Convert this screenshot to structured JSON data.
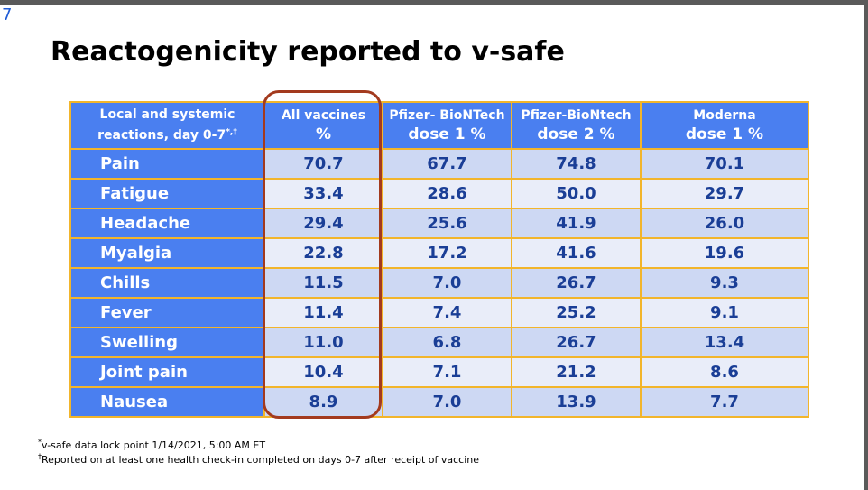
{
  "slide": {
    "number": "7"
  },
  "title": "Reactogenicity reported to v-safe",
  "table": {
    "headers": [
      {
        "top": "Local and systemic",
        "bottom": "reactions, day 0-7",
        "mark": "*,†"
      },
      {
        "top": "All vaccines",
        "bottom": "%"
      },
      {
        "top": "Pfizer- BioNTech",
        "bottom": "dose 1 %"
      },
      {
        "top": "Pfizer-BioNtech",
        "bottom": "dose 2 %"
      },
      {
        "top": "Moderna",
        "bottom": "dose 1 %"
      }
    ],
    "rows": [
      {
        "label": "Pain",
        "values": [
          "70.7",
          "67.7",
          "74.8",
          "70.1"
        ]
      },
      {
        "label": "Fatigue",
        "values": [
          "33.4",
          "28.6",
          "50.0",
          "29.7"
        ]
      },
      {
        "label": "Headache",
        "values": [
          "29.4",
          "25.6",
          "41.9",
          "26.0"
        ]
      },
      {
        "label": "Myalgia",
        "values": [
          "22.8",
          "17.2",
          "41.6",
          "19.6"
        ]
      },
      {
        "label": "Chills",
        "values": [
          "11.5",
          "7.0",
          "26.7",
          "9.3"
        ]
      },
      {
        "label": "Fever",
        "values": [
          "11.4",
          "7.4",
          "25.2",
          "9.1"
        ]
      },
      {
        "label": "Swelling",
        "values": [
          "11.0",
          "6.8",
          "26.7",
          "13.4"
        ]
      },
      {
        "label": "Joint pain",
        "values": [
          "10.4",
          "7.1",
          "21.2",
          "8.6"
        ]
      },
      {
        "label": "Nausea",
        "values": [
          "8.9",
          "7.0",
          "13.9",
          "7.7"
        ]
      }
    ]
  },
  "footnotes": [
    {
      "mark": "*",
      "text": "v-safe data lock point 1/14/2021, 5:00 AM ET"
    },
    {
      "mark": "†",
      "text": "Reported on at least one health check-in completed on days 0-7 after receipt of vaccine"
    }
  ],
  "colors": {
    "header_bg": "#4a7ff0",
    "cell_dark": "#cdd8f3",
    "cell_light": "#e9edf9",
    "value_text": "#1a3e96",
    "grid_line": "#f2b52b",
    "highlight_outline": "#a33a1e"
  }
}
